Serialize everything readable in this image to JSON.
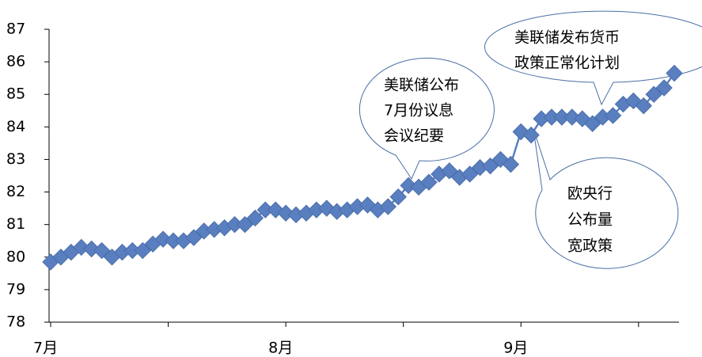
{
  "chart_data": {
    "type": "line",
    "categories": [
      "7月",
      null,
      null,
      null,
      null,
      null,
      null,
      null,
      null,
      null,
      null,
      null,
      null,
      null,
      null,
      null,
      null,
      null,
      null,
      null,
      null,
      null,
      null,
      "8月",
      null,
      null,
      null,
      null,
      null,
      null,
      null,
      null,
      null,
      null,
      null,
      null,
      null,
      null,
      null,
      null,
      null,
      null,
      null,
      null,
      null,
      null,
      "9月",
      null,
      null,
      null,
      null,
      null,
      null,
      null,
      null,
      null,
      null,
      null,
      null,
      null,
      null,
      null
    ],
    "series": [
      {
        "name": "series",
        "color": "#5a7fc0",
        "values": [
          79.85,
          80.0,
          80.15,
          80.3,
          80.25,
          80.2,
          80.0,
          80.15,
          80.2,
          80.2,
          80.4,
          80.55,
          80.5,
          80.5,
          80.6,
          80.8,
          80.85,
          80.9,
          81.0,
          81.0,
          81.2,
          81.45,
          81.45,
          81.35,
          81.3,
          81.35,
          81.45,
          81.5,
          81.4,
          81.45,
          81.55,
          81.6,
          81.45,
          81.55,
          81.85,
          82.2,
          82.15,
          82.3,
          82.55,
          82.65,
          82.45,
          82.55,
          82.75,
          82.8,
          83.0,
          82.85,
          83.85,
          83.75,
          84.25,
          84.3,
          84.3,
          84.3,
          84.25,
          84.1,
          84.3,
          84.35,
          84.7,
          84.8,
          84.65,
          85.0,
          85.2,
          85.65
        ]
      }
    ],
    "ylim": [
      78,
      87
    ],
    "yticks": [
      78,
      79,
      80,
      81,
      82,
      83,
      84,
      85,
      86,
      87
    ],
    "grid": false,
    "annotations": [
      {
        "lines": [
          "美联储公布",
          "7月份议息",
          "会议纪要"
        ]
      },
      {
        "lines": [
          "美联储发布货币",
          "政策正常化计划"
        ]
      },
      {
        "lines": [
          "欧央行",
          "公布量",
          "宽政策"
        ]
      }
    ]
  }
}
